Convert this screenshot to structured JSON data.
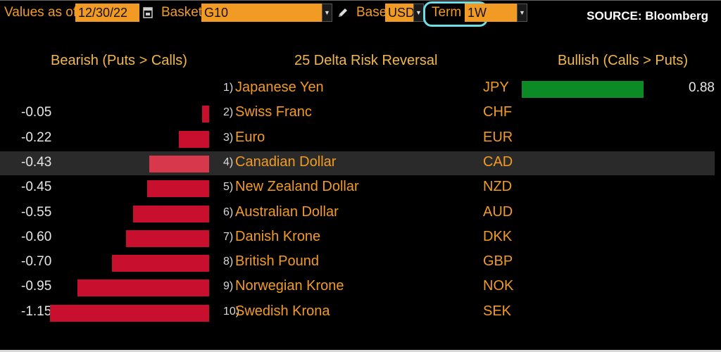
{
  "toolbar": {
    "values_as_of_label": "Values as of",
    "date": "12/30/22",
    "basket_label": "Basket",
    "basket": "G10",
    "base_label": "Base",
    "base": "USD",
    "term_label": "Term",
    "term": "1W"
  },
  "source": "SOURCE: Bloomberg",
  "headers": {
    "bearish": "Bearish (Puts > Calls)",
    "center": "25 Delta Risk Reversal",
    "bullish": "Bullish (Calls > Puts)"
  },
  "colors": {
    "accent": "#f29b24",
    "bearish_bar": "#c8102e",
    "bullish_bar": "#0b8a25",
    "term_highlight": "#6fdde6"
  },
  "rows": [
    {
      "rank": "1)",
      "name": "Japanese Yen",
      "code": "JPY",
      "value": 0.88,
      "value_text": "0.88"
    },
    {
      "rank": "2)",
      "name": "Swiss Franc",
      "code": "CHF",
      "value": -0.05,
      "value_text": "-0.05"
    },
    {
      "rank": "3)",
      "name": "Euro",
      "code": "EUR",
      "value": -0.22,
      "value_text": "-0.22"
    },
    {
      "rank": "4)",
      "name": "Canadian Dollar",
      "code": "CAD",
      "value": -0.43,
      "value_text": "-0.43"
    },
    {
      "rank": "5)",
      "name": "New Zealand Dollar",
      "code": "NZD",
      "value": -0.45,
      "value_text": "-0.45"
    },
    {
      "rank": "6)",
      "name": "Australian Dollar",
      "code": "AUD",
      "value": -0.55,
      "value_text": "-0.55"
    },
    {
      "rank": "7)",
      "name": "Danish Krone",
      "code": "DKK",
      "value": -0.6,
      "value_text": "-0.60"
    },
    {
      "rank": "8)",
      "name": "British Pound",
      "code": "GBP",
      "value": -0.7,
      "value_text": "-0.70"
    },
    {
      "rank": "9)",
      "name": "Norwegian Krone",
      "code": "NOK",
      "value": -0.95,
      "value_text": "-0.95"
    },
    {
      "rank": "10)",
      "name": "Swedish Krona",
      "code": "SEK",
      "value": -1.15,
      "value_text": "-1.15"
    }
  ],
  "selected_row": 3
}
